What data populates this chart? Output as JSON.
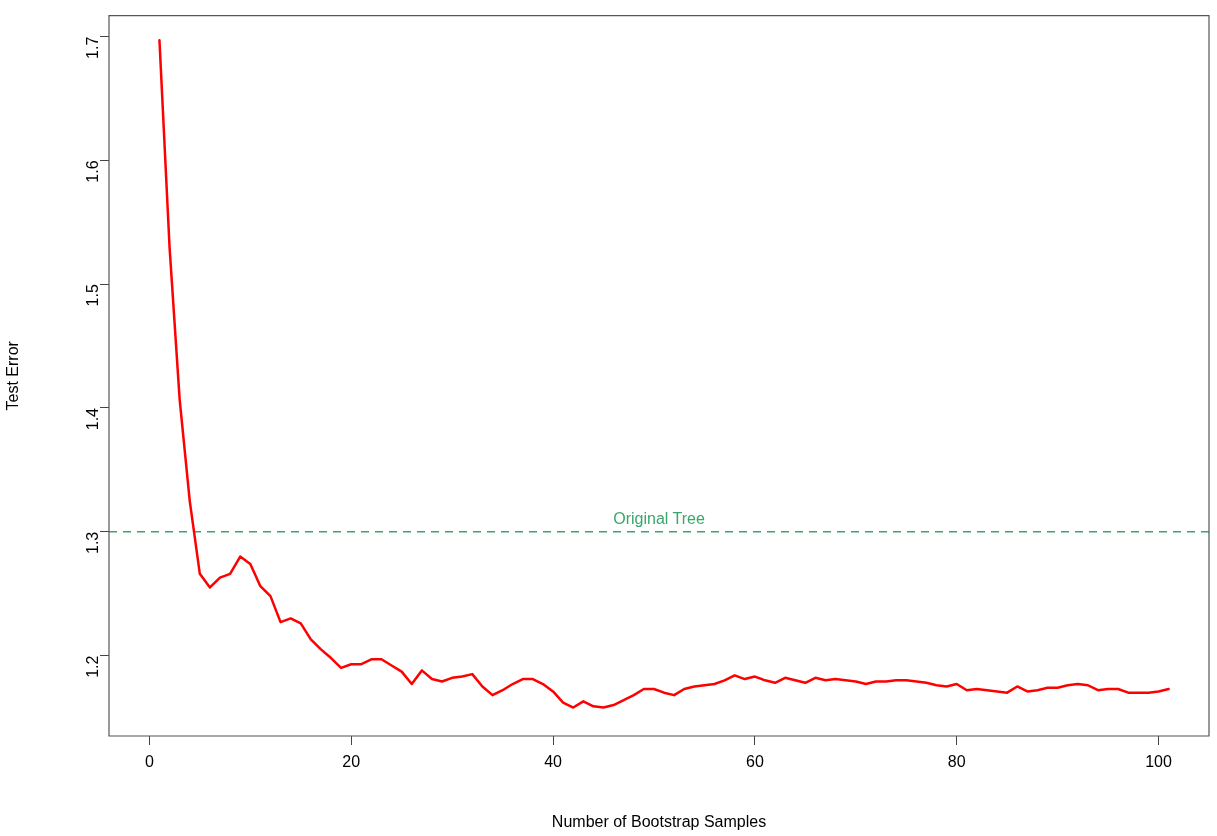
{
  "chart_data": {
    "type": "line",
    "xlabel": "Number of Bootstrap Samples",
    "ylabel": "Test Error",
    "x": [
      1,
      2,
      3,
      4,
      5,
      6,
      7,
      8,
      9,
      10,
      11,
      12,
      13,
      14,
      15,
      16,
      17,
      18,
      19,
      20,
      21,
      22,
      23,
      24,
      25,
      26,
      27,
      28,
      29,
      30,
      31,
      32,
      33,
      34,
      35,
      36,
      37,
      38,
      39,
      40,
      41,
      42,
      43,
      44,
      45,
      46,
      47,
      48,
      49,
      50,
      51,
      52,
      53,
      54,
      55,
      56,
      57,
      58,
      59,
      60,
      61,
      62,
      63,
      64,
      65,
      66,
      67,
      68,
      69,
      70,
      71,
      72,
      73,
      74,
      75,
      76,
      77,
      78,
      79,
      80,
      81,
      82,
      83,
      84,
      85,
      86,
      87,
      88,
      89,
      90,
      91,
      92,
      93,
      94,
      95,
      96,
      97,
      98,
      99,
      100,
      101
    ],
    "series": [
      {
        "color": "#ff0000",
        "values": [
          1.697,
          1.53,
          1.407,
          1.325,
          1.266,
          1.255,
          1.263,
          1.266,
          1.28,
          1.274,
          1.256,
          1.248,
          1.227,
          1.23,
          1.226,
          1.213,
          1.205,
          1.198,
          1.19,
          1.193,
          1.193,
          1.197,
          1.197,
          1.192,
          1.187,
          1.177,
          1.188,
          1.181,
          1.179,
          1.182,
          1.183,
          1.185,
          1.175,
          1.168,
          1.172,
          1.177,
          1.181,
          1.181,
          1.177,
          1.171,
          1.162,
          1.158,
          1.163,
          1.159,
          1.158,
          1.16,
          1.164,
          1.168,
          1.173,
          1.173,
          1.17,
          1.168,
          1.173,
          1.175,
          1.176,
          1.177,
          1.18,
          1.184,
          1.181,
          1.183,
          1.18,
          1.178,
          1.182,
          1.18,
          1.178,
          1.182,
          1.18,
          1.181,
          1.18,
          1.179,
          1.177,
          1.179,
          1.179,
          1.18,
          1.18,
          1.179,
          1.178,
          1.176,
          1.175,
          1.177,
          1.172,
          1.173,
          1.172,
          1.171,
          1.17,
          1.175,
          1.171,
          1.172,
          1.174,
          1.174,
          1.176,
          1.177,
          1.176,
          1.172,
          1.173,
          1.173,
          1.17,
          1.17,
          1.17,
          1.171,
          1.173
        ]
      }
    ],
    "xlim": [
      -4,
      105
    ],
    "ylim": [
      1.135,
      1.717
    ],
    "xticks": [
      0,
      20,
      40,
      60,
      80,
      100
    ],
    "yticks": [
      1.2,
      1.3,
      1.4,
      1.5,
      1.6,
      1.7
    ],
    "ref_lines": [
      {
        "axis": "y",
        "value": 1.3,
        "label": "Original Tree",
        "color": "#3aa66a",
        "line_style": "dashed"
      }
    ]
  }
}
